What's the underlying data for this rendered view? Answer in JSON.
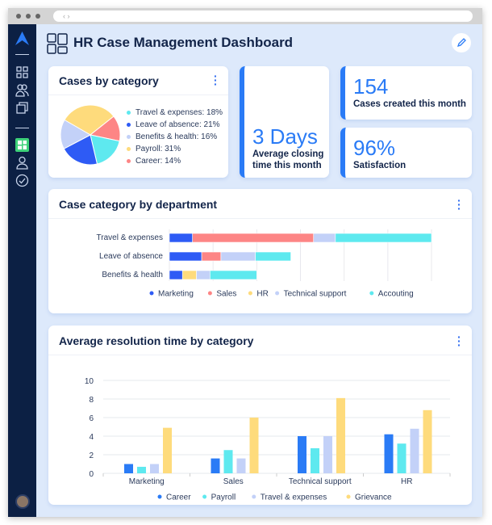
{
  "header": {
    "title": "HR Case Management Dashboard",
    "url_icon": "code-brackets-icon",
    "edit_icon": "pencil-icon"
  },
  "sidebar": {
    "items": [
      "dashboard-grid",
      "users",
      "documents",
      "dashboard-active",
      "profile",
      "check-circle"
    ]
  },
  "pie_card": {
    "title": "Cases by category"
  },
  "stats": {
    "closing": {
      "value": "3 Days",
      "label": "Average closing time this month"
    },
    "created": {
      "value": "154",
      "label": "Cases created this month"
    },
    "satisfaction": {
      "value": "96%",
      "label": "Satisfaction"
    }
  },
  "dept_card": {
    "title": "Case category by department"
  },
  "res_card": {
    "title": "Average resolution time by category"
  },
  "chart_data": [
    {
      "type": "pie",
      "title": "Cases by category",
      "slices": [
        {
          "label": "Travel & expenses: 18%",
          "name": "Travel & expenses",
          "value": 18,
          "color": "#5ee9ef"
        },
        {
          "label": "Leave of absence: 21%",
          "name": "Leave of absence",
          "value": 21,
          "color": "#2e5bf5"
        },
        {
          "label": "Benefits & health: 16%",
          "name": "Benefits & health",
          "value": 16,
          "color": "#c3d1f8"
        },
        {
          "label": "Payroll: 31%",
          "name": "Payroll",
          "value": 31,
          "color": "#fedb7c"
        },
        {
          "label": "Career: 14%",
          "name": "Career",
          "value": 14,
          "color": "#fd8585"
        }
      ],
      "draw_order": [
        "Payroll",
        "Career",
        "Travel & expenses",
        "Leave of absence",
        "Benefits & health"
      ]
    },
    {
      "type": "bar",
      "orientation": "horizontal",
      "stacked": true,
      "title": "Case category by department",
      "categories": [
        "Travel & expenses",
        "Leave of absence",
        "Benefits & health"
      ],
      "xlim": [
        0,
        60
      ],
      "grid": true,
      "legend": "bottom",
      "series": [
        {
          "name": "Marketing",
          "color": "#2e5bf5",
          "values": [
            5.3,
            7.4,
            3.0
          ]
        },
        {
          "name": "Sales",
          "color": "#fd8585",
          "values": [
            27.7,
            4.4,
            0
          ]
        },
        {
          "name": "HR",
          "color": "#fedb7c",
          "values": [
            0,
            0,
            3.2
          ]
        },
        {
          "name": "Technical support",
          "color": "#c3d1f8",
          "values": [
            5.0,
            7.9,
            3.1
          ]
        },
        {
          "name": "Accouting",
          "color": "#5ee9ef",
          "values": [
            22.0,
            8.1,
            10.7
          ]
        }
      ]
    },
    {
      "type": "bar",
      "title": "Average resolution time by category",
      "categories": [
        "Marketing",
        "Sales",
        "Technical support",
        "HR"
      ],
      "ylim": [
        0,
        10
      ],
      "yticks": [
        0,
        2,
        4,
        6,
        8,
        10
      ],
      "grid": true,
      "legend": "bottom",
      "series": [
        {
          "name": "Career",
          "color": "#2a7bf6",
          "values": [
            1.0,
            1.6,
            4.0,
            4.2
          ]
        },
        {
          "name": "Payroll",
          "color": "#5ee9ef",
          "values": [
            0.7,
            2.5,
            2.7,
            3.2
          ]
        },
        {
          "name": "Travel & expenses",
          "color": "#c3d1f8",
          "values": [
            1.0,
            1.6,
            4.0,
            4.8
          ]
        },
        {
          "name": "Grievance",
          "color": "#fedb7c",
          "values": [
            4.9,
            6.0,
            8.1,
            6.8
          ]
        }
      ]
    }
  ]
}
